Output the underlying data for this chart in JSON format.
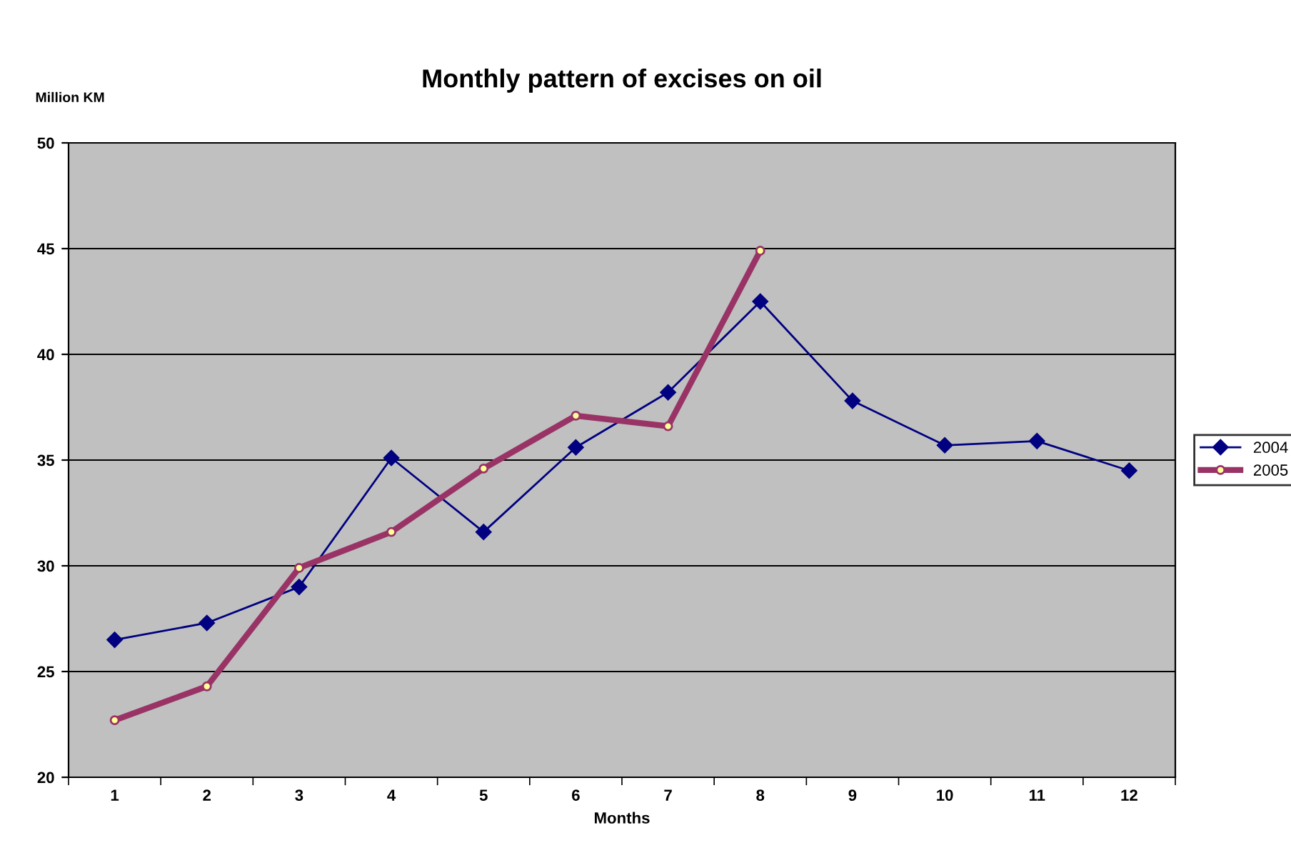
{
  "chart_data": {
    "type": "line",
    "title": "Monthly pattern of excises on oil",
    "xlabel": "Months",
    "ylabel": "Million KM",
    "categories": [
      "1",
      "2",
      "3",
      "4",
      "5",
      "6",
      "7",
      "8",
      "9",
      "10",
      "11",
      "12"
    ],
    "series": [
      {
        "name": "2004",
        "color": "#000080",
        "marker": "diamond",
        "values": [
          26.5,
          27.3,
          29.0,
          35.1,
          31.6,
          35.6,
          38.2,
          42.5,
          37.8,
          35.7,
          35.9,
          34.5
        ]
      },
      {
        "name": "2005",
        "color": "#993366",
        "marker": "circle",
        "values": [
          22.7,
          24.3,
          29.9,
          31.6,
          34.6,
          37.1,
          36.6,
          44.9,
          null,
          null,
          null,
          null
        ]
      }
    ],
    "ylim": [
      20,
      50
    ],
    "yticks": [
      20,
      25,
      30,
      35,
      40,
      45,
      50
    ],
    "grid": "y",
    "legend": "right",
    "line_style": "solid"
  }
}
